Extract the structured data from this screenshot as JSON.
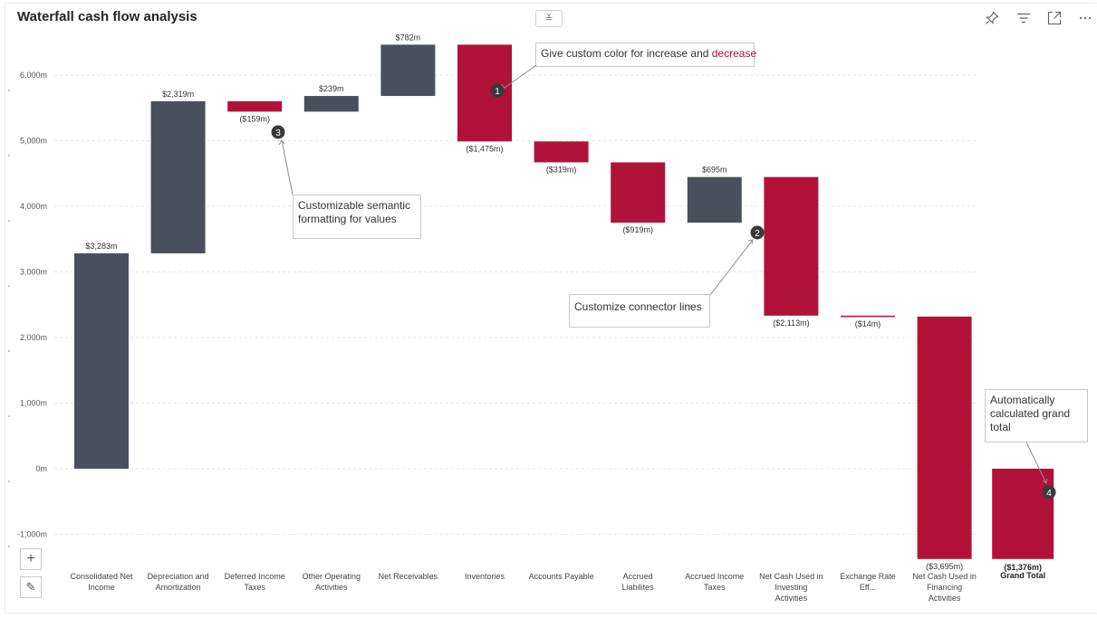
{
  "header": {
    "title": "Waterfall cash flow analysis",
    "collapse_glyph": "≚",
    "icons": [
      "pin-icon",
      "filter-icon",
      "focus-mode-icon",
      "more-options-icon"
    ]
  },
  "colors": {
    "increase": "#4a505b",
    "decrease": "#b0123a",
    "total": "#b0123a",
    "grid": "#e6e6e6",
    "connector": "#999999"
  },
  "chart_data": {
    "type": "bar",
    "subtype": "waterfall",
    "title": "Waterfall cash flow analysis",
    "xlabel": "",
    "ylabel": "",
    "ylim": [
      -1000,
      6400
    ],
    "yticks": [
      -1000,
      0,
      1000,
      2000,
      3000,
      4000,
      5000,
      6000
    ],
    "ytick_labels": [
      "-1,000m",
      "0m",
      "1,000m",
      "2,000m",
      "3,000m",
      "4,000m",
      "5,000m",
      "6,000m"
    ],
    "grid": true,
    "categories": [
      "Consolidated Net Income",
      "Depreciation and Amortization",
      "Deferred Income Taxes",
      "Other Operating Activities",
      "Net Receivables",
      "Inventories",
      "Accounts Payable",
      "Accrued Liabilites",
      "Accrued Income Taxes",
      "Net Cash Used in Investing Activities",
      "Exchange Rate Eff...",
      "Net Cash Used in Financing Activities"
    ],
    "values": [
      3283,
      2319,
      -159,
      239,
      782,
      -1475,
      -319,
      -919,
      695,
      -2113,
      -14,
      -3695
    ],
    "data_labels": [
      "$3,283m",
      "$2,319m",
      "($159m)",
      "$239m",
      "$782m",
      "($1,475m)",
      "($319m)",
      "($919m)",
      "$695m",
      "($2,113m)",
      "($14m)",
      "($3,695m)"
    ],
    "total": {
      "label": "Grand Total",
      "value": -1376,
      "data_label": "($1,376m)"
    }
  },
  "callouts": [
    {
      "number": "1",
      "text_before": "Give custom color for increase and ",
      "text_highlight": "decrease"
    },
    {
      "number": "2",
      "text": "Customize connector lines"
    },
    {
      "number": "3",
      "text": "Customizable semantic formatting for values"
    },
    {
      "number": "4",
      "text": "Automatically calculated grand total"
    }
  ],
  "tools": {
    "zoom_in_glyph": "+",
    "edit_glyph": "✎"
  }
}
